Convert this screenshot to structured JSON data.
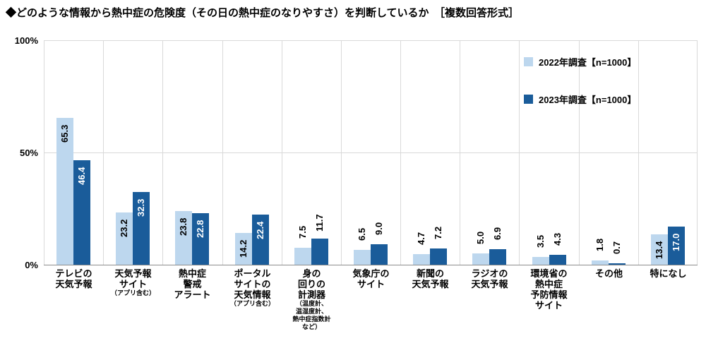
{
  "title": "◆どのような情報から熱中症の危険度（その日の熱中症のなりやすさ）を判断しているか　［複数回答形式］",
  "y_axis": {
    "ticks": [
      "100%",
      "50%",
      "0%"
    ]
  },
  "legend": [
    {
      "label": "2022年調査【n=1000】",
      "color": "#BDD7EE"
    },
    {
      "label": "2023年調査【n=1000】",
      "color": "#1A5C9A"
    }
  ],
  "chart_data": {
    "type": "bar",
    "title": "どのような情報から熱中症の危険度（その日の熱中症のなりやすさ）を判断しているか（複数回答形式）",
    "xlabel": "",
    "ylabel": "%",
    "ylim": [
      0,
      100
    ],
    "ytick_values": [
      0,
      50,
      100
    ],
    "grid": true,
    "legend_position": "top-right",
    "value_label_orientation": "vertical",
    "categories": [
      {
        "label": [
          "テレビの",
          "天気予報"
        ],
        "note": []
      },
      {
        "label": [
          "天気予報",
          "サイト"
        ],
        "note": [
          "（アプリ含む）"
        ]
      },
      {
        "label": [
          "熱中症",
          "警戒",
          "アラート"
        ],
        "note": []
      },
      {
        "label": [
          "ポータル",
          "サイトの",
          "天気情報"
        ],
        "note": [
          "（アプリ含む）"
        ]
      },
      {
        "label": [
          "身の",
          "回りの",
          "計測器"
        ],
        "note": [
          "（温度計、",
          "温湿度計、",
          "熱中症指数計",
          "など）"
        ]
      },
      {
        "label": [
          "気象庁の",
          "サイト"
        ],
        "note": []
      },
      {
        "label": [
          "新聞の",
          "天気予報"
        ],
        "note": []
      },
      {
        "label": [
          "ラジオの",
          "天気予報"
        ],
        "note": []
      },
      {
        "label": [
          "環境省の",
          "熱中症",
          "予防情報",
          "サイト"
        ],
        "note": []
      },
      {
        "label": [
          "その他"
        ],
        "note": []
      },
      {
        "label": [
          "特になし"
        ],
        "note": []
      }
    ],
    "series": [
      {
        "name": "2022年調査【n=1000】",
        "color": "#BDD7EE",
        "values": [
          65.3,
          23.2,
          23.8,
          14.2,
          7.5,
          6.5,
          4.7,
          5.0,
          3.5,
          1.8,
          13.4
        ]
      },
      {
        "name": "2023年調査【n=1000】",
        "color": "#1A5C9A",
        "values": [
          46.4,
          32.3,
          22.8,
          22.4,
          11.7,
          9.0,
          7.2,
          6.9,
          4.3,
          0.7,
          17.0
        ]
      }
    ]
  }
}
